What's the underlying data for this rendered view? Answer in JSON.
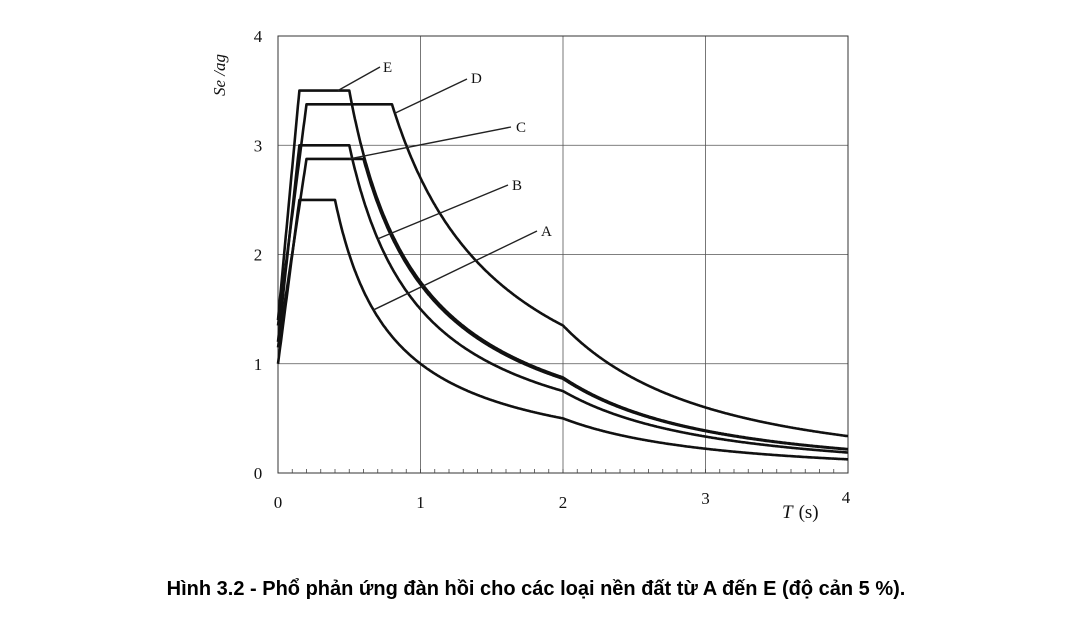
{
  "chart_data": {
    "type": "line",
    "title": "",
    "xlabel": "T",
    "xlabel_unit": "(s)",
    "ylabel": "Se /ag",
    "xlim": [
      0,
      4
    ],
    "ylim": [
      0,
      4
    ],
    "x_ticks": [
      "0",
      "1",
      "2",
      "3",
      "4"
    ],
    "y_ticks": [
      "0",
      "1",
      "2",
      "3",
      "4"
    ],
    "grid": true,
    "legend": "inline leader-line labels",
    "series": [
      {
        "name": "A",
        "S": 1.0,
        "TB": 0.15,
        "TC": 0.4,
        "TD": 2.0
      },
      {
        "name": "B",
        "S": 1.2,
        "TB": 0.15,
        "TC": 0.5,
        "TD": 2.0
      },
      {
        "name": "C",
        "S": 1.15,
        "TB": 0.2,
        "TC": 0.6,
        "TD": 2.0
      },
      {
        "name": "D",
        "S": 1.35,
        "TB": 0.2,
        "TC": 0.8,
        "TD": 2.0
      },
      {
        "name": "E",
        "S": 1.4,
        "TB": 0.15,
        "TC": 0.5,
        "TD": 2.0
      }
    ],
    "eta": 1.0,
    "plateau_factor": 2.5
  },
  "caption": "Hình 3.2 - Phổ phản ứng đàn hồi cho các loại nền đất từ A đến E (độ cản 5 %)."
}
